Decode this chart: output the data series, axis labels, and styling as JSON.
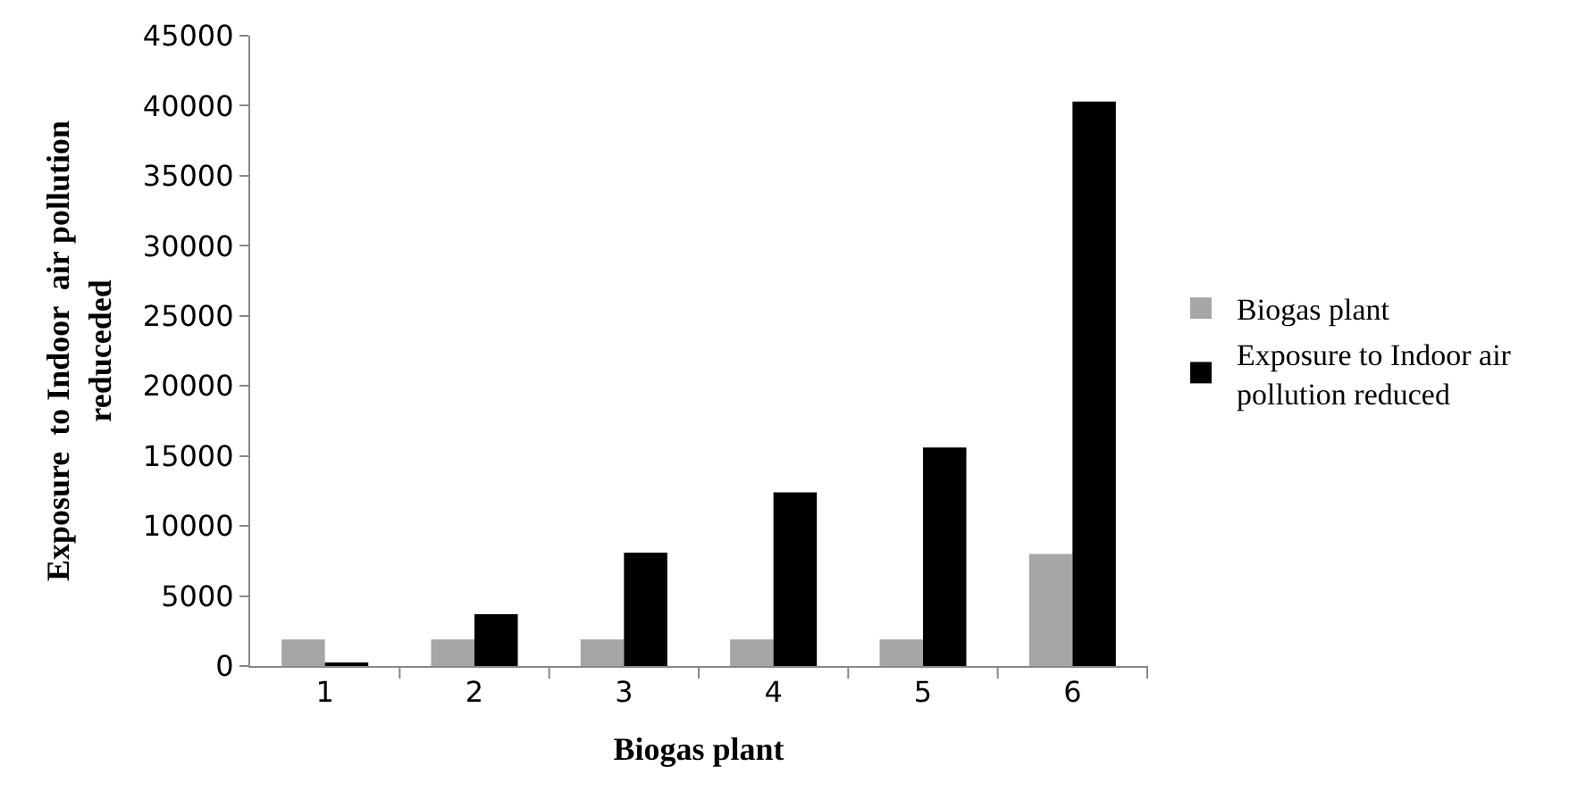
{
  "chart_data": {
    "type": "bar",
    "xlabel": "Biogas plant",
    "ylabel": "Exposure  to Indoor  air pollution\nreduceded",
    "categories": [
      "1",
      "2",
      "3",
      "4",
      "5",
      "6"
    ],
    "series": [
      {
        "name": "Biogas plant",
        "color": "#a6a6a6",
        "values": [
          1900,
          1900,
          1900,
          1900,
          1900,
          8000
        ]
      },
      {
        "name": "Exposure to Indoor air pollution reduced",
        "color": "#000000",
        "values": [
          150,
          3700,
          8100,
          12400,
          15600,
          40300
        ]
      }
    ],
    "ylim": [
      0,
      45000
    ],
    "yticks": [
      0,
      5000,
      10000,
      15000,
      20000,
      25000,
      30000,
      35000,
      40000,
      45000
    ],
    "grid": false,
    "legend": "right"
  }
}
